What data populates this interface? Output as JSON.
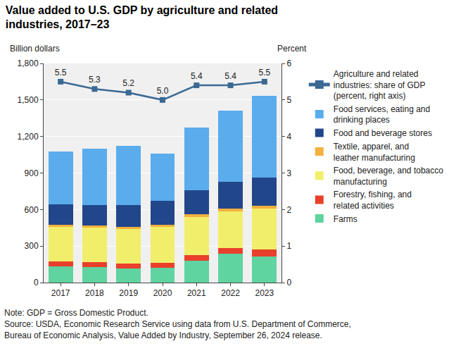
{
  "chart_data": {
    "type": "bar",
    "title": "Value added to U.S. GDP by agriculture and related industries, 2017–23",
    "ylabel": "Billion dollars",
    "y2label": "Percent",
    "note": "Note: GDP = Gross Domestic Product.",
    "source": "Source: USDA, Economic Research Service using data from U.S. Department of Commerce, Bureau of Economic Analysis, Value Added by Industry, September 26, 2024 release.",
    "categories": [
      "2017",
      "2018",
      "2019",
      "2020",
      "2021",
      "2022",
      "2023"
    ],
    "stacked": true,
    "grid": true,
    "legend": "right",
    "ylim": [
      0,
      1800
    ],
    "yticks": [
      0,
      300,
      600,
      900,
      {
        "value": 1200,
        "label": "1,200"
      },
      {
        "value": 1500,
        "label": "1,500"
      },
      {
        "value": 1800,
        "label": "1,800"
      }
    ],
    "y2lim": [
      0,
      6
    ],
    "y2ticks": [
      0,
      1,
      2,
      3,
      4,
      5,
      6
    ],
    "series": [
      {
        "name": "Agriculture and related industries: share of GDP (percent, right axis)",
        "type": "line",
        "axis": "y2",
        "color": "#3a6994",
        "marker": "square",
        "data_labels": true,
        "values": [
          5.5,
          5.3,
          5.2,
          5.0,
          5.4,
          5.4,
          5.5
        ],
        "value_labels": [
          "5.5",
          "5.3",
          "5.2",
          "5.0",
          "5.4",
          "5.4",
          "5.5"
        ]
      },
      {
        "name": "Food services, eating and drinking places",
        "color": "#5aacec",
        "values": [
          435,
          465,
          485,
          390,
          515,
          585,
          670
        ]
      },
      {
        "name": "Food and beverage stores",
        "color": "#22468a",
        "values": [
          165,
          165,
          175,
          195,
          200,
          215,
          235
        ]
      },
      {
        "name": "Textile, apparel, and leather manufacturing",
        "color": "#f2b13d",
        "values": [
          20,
          20,
          20,
          20,
          20,
          25,
          20
        ]
      },
      {
        "name": "Food, beverage, and tobacco manufacturing",
        "color": "#f1ee6b",
        "values": [
          280,
          280,
          285,
          295,
          315,
          300,
          340
        ]
      },
      {
        "name": "Forestry, fishing, and related activities",
        "color": "#e8402b",
        "values": [
          40,
          40,
          40,
          40,
          45,
          50,
          55
        ]
      },
      {
        "name": "Farms",
        "color": "#5fd3a0",
        "values": [
          135,
          130,
          115,
          120,
          180,
          235,
          215
        ]
      }
    ]
  }
}
